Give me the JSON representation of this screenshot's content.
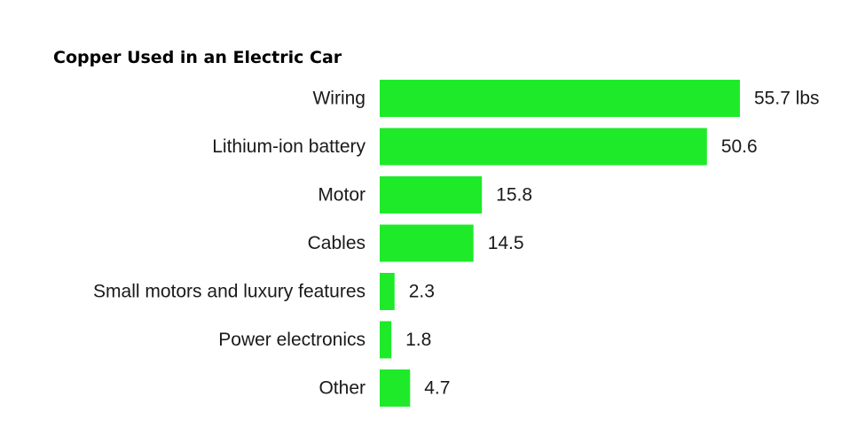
{
  "chart_data": {
    "type": "bar",
    "orientation": "horizontal",
    "title": "Copper Used in an Electric Car",
    "categories": [
      "Wiring",
      "Lithium-ion battery",
      "Motor",
      "Cables",
      "Small motors and luxury features",
      "Power electronics",
      "Other"
    ],
    "values": [
      55.7,
      50.6,
      15.8,
      14.5,
      2.3,
      1.8,
      4.7
    ],
    "value_labels": [
      "55.7 lbs",
      "50.6",
      "15.8",
      "14.5",
      "2.3",
      "1.8",
      "4.7"
    ],
    "xlabel": "",
    "ylabel": "",
    "xlim": [
      0,
      55.7
    ],
    "grid": false,
    "legend": "none",
    "bar_color": "#1FEA2A"
  }
}
